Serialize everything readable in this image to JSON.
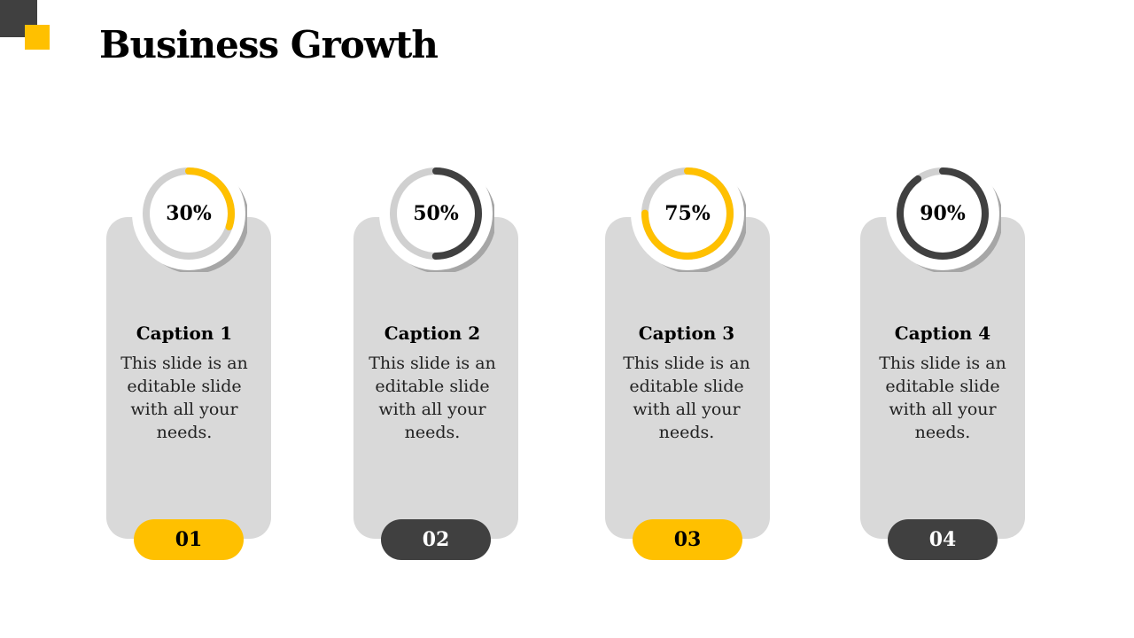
{
  "title": "Business Growth",
  "colors": {
    "accent": "#ffc000",
    "dark": "#404040",
    "card": "#d9d9d9",
    "track": "#d0d0d0"
  },
  "items": [
    {
      "percent_label": "30%",
      "progress": 0.3,
      "ring_color": "#ffc000",
      "caption": "Caption 1",
      "desc_lines": [
        "This slide is an",
        "editable slide",
        "with all your",
        "needs."
      ],
      "number": "01",
      "pill_style": "yellow"
    },
    {
      "percent_label": "50%",
      "progress": 0.5,
      "ring_color": "#404040",
      "caption": "Caption 2",
      "desc_lines": [
        "This slide is an",
        "editable slide",
        "with all your",
        "needs."
      ],
      "number": "02",
      "pill_style": "dark"
    },
    {
      "percent_label": "75%",
      "progress": 0.75,
      "ring_color": "#ffc000",
      "caption": "Caption 3",
      "desc_lines": [
        "This slide is an",
        "editable slide",
        "with all your",
        "needs."
      ],
      "number": "03",
      "pill_style": "yellow"
    },
    {
      "percent_label": "90%",
      "progress": 0.9,
      "ring_color": "#404040",
      "caption": "Caption 4",
      "desc_lines": [
        "This slide is an",
        "editable slide",
        "with all your",
        "needs."
      ],
      "number": "04",
      "pill_style": "dark"
    }
  ]
}
